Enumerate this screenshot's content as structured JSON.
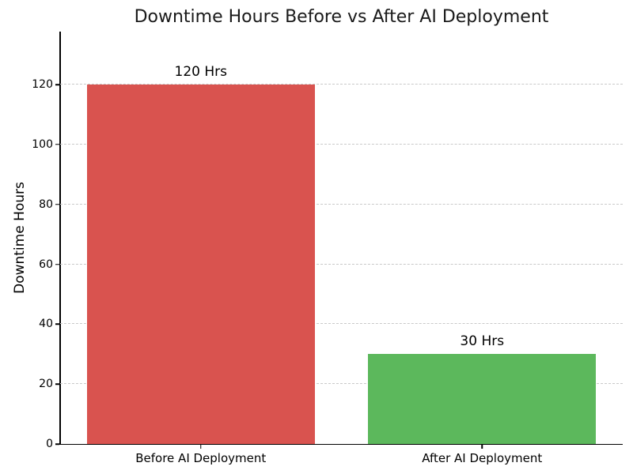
{
  "chart_data": {
    "type": "bar",
    "title": "Downtime Hours Before vs After AI Deployment",
    "xlabel": "",
    "ylabel": "Downtime Hours",
    "categories": [
      "Before AI Deployment",
      "After AI Deployment"
    ],
    "values": [
      120,
      30
    ],
    "bar_labels": [
      "120 Hrs",
      "30 Hrs"
    ],
    "bar_colors": [
      "#d9534f",
      "#5cb85c"
    ],
    "yticks": [
      0,
      20,
      40,
      60,
      80,
      100,
      120
    ],
    "ylim": [
      0,
      137.7
    ],
    "grid": "horizontal-dashed",
    "grid_color": "#c9c9c9",
    "legend": "none",
    "title_color": "#1a1a1a",
    "axis_color": "#000000"
  }
}
